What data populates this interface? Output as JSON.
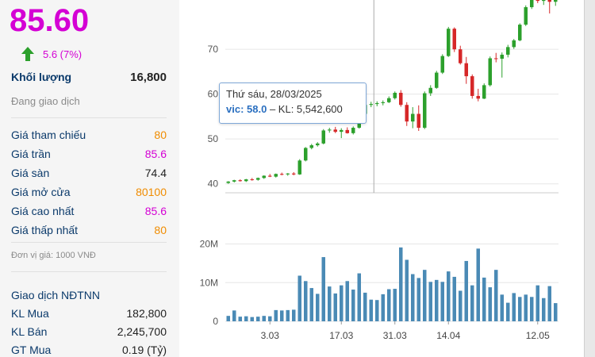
{
  "stock": {
    "price": "85.60",
    "change": "5.6 (7%)",
    "volume_label": "Khối lượng",
    "volume": "16,800",
    "status": "Đang giao dịch"
  },
  "price_info": [
    {
      "label": "Giá tham chiếu",
      "value": "80",
      "color": "orange"
    },
    {
      "label": "Giá trần",
      "value": "85.6",
      "color": "magenta"
    },
    {
      "label": "Giá sàn",
      "value": "74.4",
      "color": "black"
    },
    {
      "label": "Giá mở cửa",
      "value": "80100",
      "color": "orange"
    },
    {
      "label": "Giá cao nhất",
      "value": "85.6",
      "color": "magenta"
    },
    {
      "label": "Giá thấp nhất",
      "value": "80",
      "color": "orange"
    }
  ],
  "unit_note": "Đơn vị giá: 1000 VNĐ",
  "foreign": {
    "title": "Giao dịch NĐTNN",
    "rows": [
      {
        "label": "KL Mua",
        "value": "182,800"
      },
      {
        "label": "KL Bán",
        "value": "2,245,700"
      },
      {
        "label": "GT Mua",
        "value": "0.19 (Tỷ)"
      }
    ]
  },
  "tooltip": {
    "date": "Thứ sáu, 28/03/2025",
    "symbol": "vic:",
    "price": "58.0",
    "volume_text": "– KL: 5,542,600"
  },
  "colors": {
    "up": "#2ca02c",
    "down": "#d62728",
    "volume": "#4a8ab5",
    "ceiling": "#d400d4",
    "reference": "#f08c00"
  },
  "chart_data": {
    "type": "candlestick",
    "price_ticks": [
      40,
      50,
      60,
      70
    ],
    "volume_ticks": [
      "0",
      "10M",
      "20M"
    ],
    "x_labels": [
      "3.03",
      "17.03",
      "31.03",
      "14.04",
      "12.05"
    ],
    "price_range": [
      38,
      81
    ],
    "volume_range": [
      0,
      24
    ],
    "candles": [
      {
        "o": 40.2,
        "h": 40.6,
        "l": 40.0,
        "c": 40.5,
        "v": 1.4
      },
      {
        "o": 40.5,
        "h": 40.9,
        "l": 40.3,
        "c": 40.8,
        "v": 2.8
      },
      {
        "o": 40.8,
        "h": 41.0,
        "l": 40.5,
        "c": 40.6,
        "v": 1.2
      },
      {
        "o": 40.6,
        "h": 41.1,
        "l": 40.4,
        "c": 41.0,
        "v": 1.3
      },
      {
        "o": 41.0,
        "h": 41.3,
        "l": 40.7,
        "c": 40.9,
        "v": 1.1
      },
      {
        "o": 40.9,
        "h": 41.4,
        "l": 40.7,
        "c": 41.3,
        "v": 1.2
      },
      {
        "o": 41.3,
        "h": 41.9,
        "l": 41.1,
        "c": 41.8,
        "v": 1.4
      },
      {
        "o": 41.8,
        "h": 42.2,
        "l": 41.5,
        "c": 41.6,
        "v": 1.3
      },
      {
        "o": 41.6,
        "h": 42.3,
        "l": 41.4,
        "c": 42.2,
        "v": 2.9
      },
      {
        "o": 42.2,
        "h": 42.5,
        "l": 41.9,
        "c": 42.1,
        "v": 2.8
      },
      {
        "o": 42.1,
        "h": 42.4,
        "l": 41.8,
        "c": 42.3,
        "v": 2.9
      },
      {
        "o": 42.3,
        "h": 42.6,
        "l": 41.9,
        "c": 42.1,
        "v": 3.0
      },
      {
        "o": 42.1,
        "h": 45.5,
        "l": 42.0,
        "c": 45.2,
        "v": 11.8
      },
      {
        "o": 45.2,
        "h": 48.2,
        "l": 45.0,
        "c": 48.0,
        "v": 10.4
      },
      {
        "o": 48.0,
        "h": 48.9,
        "l": 47.7,
        "c": 48.6,
        "v": 8.6
      },
      {
        "o": 48.6,
        "h": 49.3,
        "l": 48.3,
        "c": 49.0,
        "v": 7.1
      },
      {
        "o": 49.0,
        "h": 52.2,
        "l": 48.8,
        "c": 51.9,
        "v": 16.6
      },
      {
        "o": 51.9,
        "h": 52.5,
        "l": 51.4,
        "c": 52.1,
        "v": 9.0
      },
      {
        "o": 52.1,
        "h": 52.7,
        "l": 51.3,
        "c": 51.6,
        "v": 7.2
      },
      {
        "o": 51.6,
        "h": 52.4,
        "l": 50.2,
        "c": 52.0,
        "v": 9.3
      },
      {
        "o": 52.0,
        "h": 52.6,
        "l": 51.2,
        "c": 51.3,
        "v": 10.4
      },
      {
        "o": 51.3,
        "h": 52.8,
        "l": 51.0,
        "c": 52.5,
        "v": 8.2
      },
      {
        "o": 52.5,
        "h": 55.9,
        "l": 52.3,
        "c": 55.6,
        "v": 12.4
      },
      {
        "o": 55.6,
        "h": 57.9,
        "l": 55.3,
        "c": 57.6,
        "v": 7.4
      },
      {
        "o": 57.6,
        "h": 58.3,
        "l": 57.1,
        "c": 57.8,
        "v": 5.6
      },
      {
        "o": 57.8,
        "h": 58.4,
        "l": 57.3,
        "c": 58.0,
        "v": 5.5
      },
      {
        "o": 58.0,
        "h": 58.6,
        "l": 57.5,
        "c": 58.2,
        "v": 7.0
      },
      {
        "o": 58.2,
        "h": 59.5,
        "l": 58.0,
        "c": 59.1,
        "v": 8.3
      },
      {
        "o": 59.1,
        "h": 60.6,
        "l": 58.8,
        "c": 60.3,
        "v": 8.4
      },
      {
        "o": 60.3,
        "h": 60.9,
        "l": 57.2,
        "c": 57.6,
        "v": 19.1
      },
      {
        "o": 57.6,
        "h": 58.2,
        "l": 52.9,
        "c": 53.9,
        "v": 15.9
      },
      {
        "o": 53.9,
        "h": 57.1,
        "l": 52.4,
        "c": 55.6,
        "v": 12.2
      },
      {
        "o": 55.6,
        "h": 57.5,
        "l": 51.8,
        "c": 52.5,
        "v": 11.2
      },
      {
        "o": 52.5,
        "h": 60.6,
        "l": 52.2,
        "c": 60.2,
        "v": 13.3
      },
      {
        "o": 60.2,
        "h": 62.0,
        "l": 59.6,
        "c": 61.4,
        "v": 10.2
      },
      {
        "o": 61.4,
        "h": 65.2,
        "l": 61.2,
        "c": 64.8,
        "v": 10.7
      },
      {
        "o": 64.8,
        "h": 68.9,
        "l": 64.5,
        "c": 68.5,
        "v": 10.2
      },
      {
        "o": 68.5,
        "h": 75.0,
        "l": 68.3,
        "c": 74.6,
        "v": 12.9
      },
      {
        "o": 74.6,
        "h": 74.9,
        "l": 69.4,
        "c": 70.0,
        "v": 11.5
      },
      {
        "o": 70.0,
        "h": 70.8,
        "l": 66.6,
        "c": 66.9,
        "v": 7.9
      },
      {
        "o": 66.9,
        "h": 68.3,
        "l": 62.3,
        "c": 64.0,
        "v": 15.6
      },
      {
        "o": 64.0,
        "h": 64.4,
        "l": 59.0,
        "c": 59.6,
        "v": 9.3
      },
      {
        "o": 59.6,
        "h": 61.2,
        "l": 58.4,
        "c": 59.0,
        "v": 18.8
      },
      {
        "o": 59.0,
        "h": 62.4,
        "l": 58.9,
        "c": 62.0,
        "v": 11.3
      },
      {
        "o": 62.0,
        "h": 68.4,
        "l": 61.7,
        "c": 68.0,
        "v": 8.8
      },
      {
        "o": 68.0,
        "h": 69.2,
        "l": 67.1,
        "c": 67.9,
        "v": 13.3
      },
      {
        "o": 67.9,
        "h": 69.3,
        "l": 63.7,
        "c": 68.8,
        "v": 6.9
      },
      {
        "o": 68.8,
        "h": 71.0,
        "l": 68.2,
        "c": 70.5,
        "v": 4.8
      },
      {
        "o": 70.5,
        "h": 72.3,
        "l": 70.1,
        "c": 72.0,
        "v": 7.3
      },
      {
        "o": 72.0,
        "h": 75.8,
        "l": 71.8,
        "c": 75.5,
        "v": 6.3
      },
      {
        "o": 75.5,
        "h": 79.8,
        "l": 75.2,
        "c": 79.4,
        "v": 6.9
      },
      {
        "o": 79.4,
        "h": 81.8,
        "l": 79.0,
        "c": 81.4,
        "v": 6.3
      },
      {
        "o": 81.4,
        "h": 82.0,
        "l": 80.3,
        "c": 80.8,
        "v": 9.3
      },
      {
        "o": 80.8,
        "h": 81.5,
        "l": 79.9,
        "c": 81.0,
        "v": 6.0
      },
      {
        "o": 81.0,
        "h": 81.3,
        "l": 78.0,
        "c": 80.6,
        "v": 9.1
      },
      {
        "o": 80.6,
        "h": 81.5,
        "l": 79.7,
        "c": 81.2,
        "v": 4.7
      }
    ]
  }
}
